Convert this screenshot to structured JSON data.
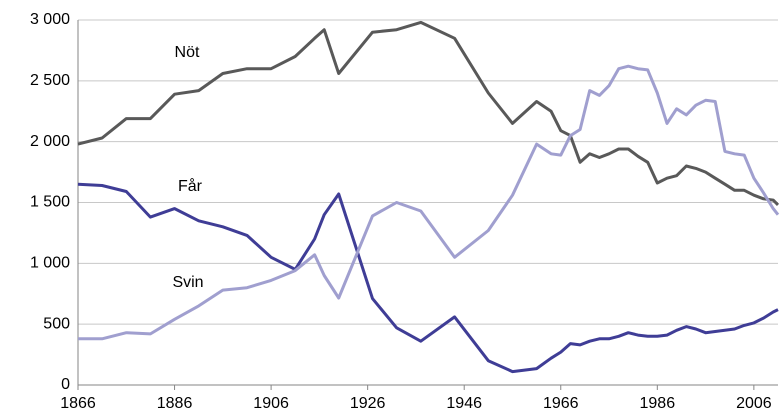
{
  "chart_data": {
    "type": "line",
    "annotations": [
      "Nöt",
      "Får",
      "Svin"
    ],
    "x": [
      1866,
      1871,
      1876,
      1881,
      1886,
      1891,
      1896,
      1901,
      1906,
      1911,
      1915,
      1917,
      1920,
      1927,
      1932,
      1937,
      1944,
      1951,
      1956,
      1961,
      1964,
      1966,
      1968,
      1970,
      1972,
      1974,
      1976,
      1978,
      1980,
      1982,
      1984,
      1986,
      1988,
      1990,
      1992,
      1994,
      1996,
      1998,
      2000,
      2002,
      2004,
      2006,
      2008,
      2010,
      2011
    ],
    "series": [
      {
        "name": "Nöt",
        "color": "#595959",
        "values": [
          1980,
          2030,
          2190,
          2190,
          2390,
          2420,
          2560,
          2600,
          2600,
          2700,
          2850,
          2920,
          2560,
          2900,
          2920,
          2980,
          2850,
          2400,
          2150,
          2330,
          2250,
          2090,
          2050,
          1830,
          1900,
          1870,
          1900,
          1940,
          1940,
          1880,
          1830,
          1660,
          1700,
          1720,
          1800,
          1780,
          1750,
          1700,
          1650,
          1600,
          1600,
          1560,
          1530,
          1520,
          1480
        ]
      },
      {
        "name": "Får",
        "color": "#3f3d96",
        "values": [
          1650,
          1640,
          1590,
          1380,
          1450,
          1350,
          1300,
          1230,
          1050,
          950,
          1200,
          1400,
          1570,
          710,
          470,
          360,
          560,
          200,
          110,
          135,
          220,
          270,
          340,
          330,
          360,
          380,
          380,
          400,
          430,
          410,
          400,
          400,
          410,
          450,
          480,
          460,
          430,
          440,
          450,
          460,
          490,
          510,
          550,
          600,
          620
        ]
      },
      {
        "name": "Svin",
        "color": "#a09fcf",
        "values": [
          380,
          380,
          430,
          420,
          540,
          650,
          780,
          800,
          860,
          940,
          1070,
          900,
          715,
          1390,
          1500,
          1430,
          1050,
          1270,
          1560,
          1980,
          1900,
          1890,
          2050,
          2100,
          2420,
          2380,
          2460,
          2600,
          2620,
          2600,
          2590,
          2400,
          2150,
          2270,
          2220,
          2300,
          2340,
          2330,
          1920,
          1900,
          1890,
          1700,
          1580,
          1450,
          1400
        ]
      }
    ],
    "xlim": [
      1866,
      2011
    ],
    "xticks": [
      1866,
      1886,
      1906,
      1926,
      1946,
      1966,
      1986,
      2006
    ],
    "ylim": [
      0,
      3000
    ],
    "yticks": [
      0,
      500,
      {
        "value": 1000,
        "label": "1 000"
      },
      {
        "value": 1500,
        "label": "1 500"
      },
      {
        "value": 2000,
        "label": "2 000"
      },
      {
        "value": 2500,
        "label": "2 500"
      },
      {
        "value": 3000,
        "label": "3 000"
      }
    ],
    "grid": true
  }
}
